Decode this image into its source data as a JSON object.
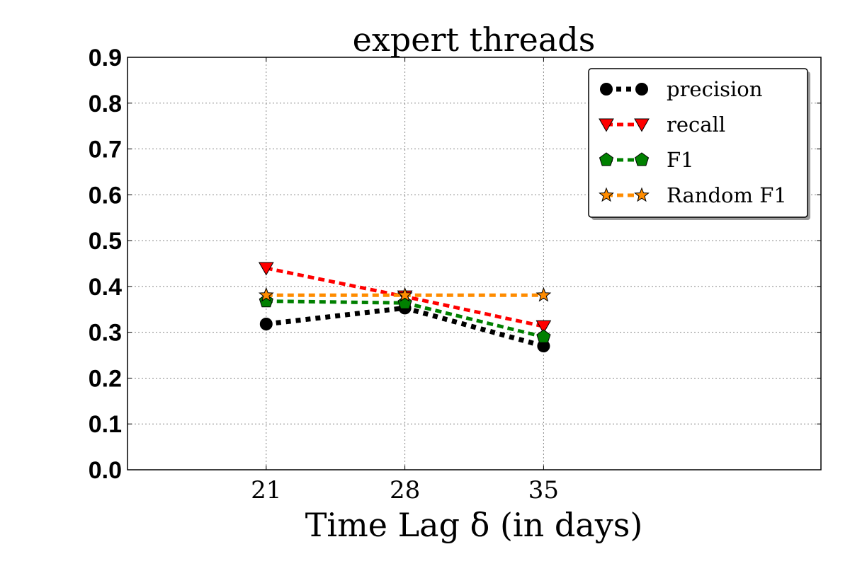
{
  "chart_data": {
    "type": "line",
    "title": "expert threads",
    "xlabel": "Time Lag δ (in days)",
    "ylabel": "",
    "x": [
      21,
      28,
      35
    ],
    "xlim": [
      14,
      49
    ],
    "ylim": [
      0.0,
      0.9
    ],
    "yticks": [
      "0.0",
      "0.1",
      "0.2",
      "0.3",
      "0.4",
      "0.5",
      "0.6",
      "0.7",
      "0.8",
      "0.9"
    ],
    "xticks": [
      "21",
      "28",
      "35"
    ],
    "grid": true,
    "legend_position": "top-right",
    "series": [
      {
        "name": "precision",
        "values": [
          0.318,
          0.353,
          0.27
        ],
        "color": "#000000",
        "marker": "circle"
      },
      {
        "name": "recall",
        "values": [
          0.44,
          0.378,
          0.313
        ],
        "color": "#ff0000",
        "marker": "triangle-down"
      },
      {
        "name": "F1",
        "values": [
          0.368,
          0.364,
          0.29
        ],
        "color": "#008000",
        "marker": "pentagon"
      },
      {
        "name": "Random F1",
        "values": [
          0.381,
          0.381,
          0.381
        ],
        "color": "#ff8c00",
        "marker": "star"
      }
    ]
  }
}
